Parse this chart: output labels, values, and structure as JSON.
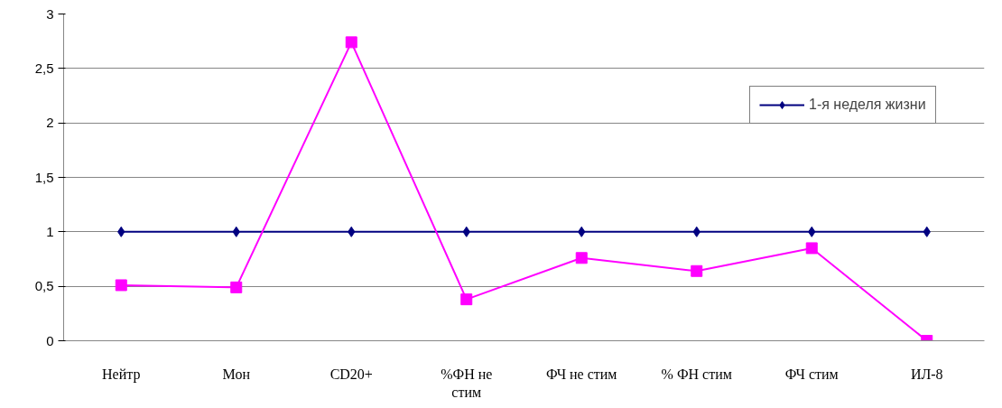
{
  "chart_data": {
    "type": "line",
    "categories": [
      "Нейтр",
      "Мон",
      "CD20+",
      "%ФН не стим",
      "ФЧ не стим",
      "% ФН стим",
      "ФЧ стим",
      "ИЛ-8"
    ],
    "series": [
      {
        "name": "1-я неделя жизни",
        "color": "#000080",
        "marker": "diamond",
        "values": [
          1,
          1,
          1,
          1,
          1,
          1,
          1,
          1
        ]
      },
      {
        "color": "#ff00ff",
        "marker": "square",
        "values": [
          0.51,
          0.49,
          2.74,
          0.38,
          0.76,
          0.64,
          0.85,
          0
        ]
      }
    ],
    "ylim": [
      0,
      3
    ],
    "yticks": [
      0,
      {
        "value": 0.5,
        "label": "0,5"
      },
      1,
      {
        "value": 1.5,
        "label": "1,5"
      },
      2,
      {
        "value": 2.5,
        "label": "2,5"
      },
      3
    ],
    "grid": "y",
    "legend": "top right",
    "line_style": "solid"
  }
}
